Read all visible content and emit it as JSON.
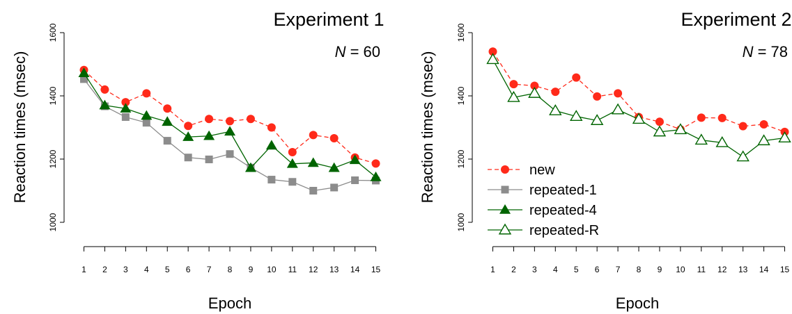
{
  "chart_data": [
    {
      "type": "line",
      "title": "Experiment 1",
      "annotation": {
        "italic": "N",
        "rest": " = 60"
      },
      "xlabel": "Epoch",
      "ylabel": "Reaction times (msec)",
      "ylim": [
        1000,
        1600
      ],
      "yticks": [
        1000,
        1200,
        1400,
        1600
      ],
      "x": [
        1,
        2,
        3,
        4,
        5,
        6,
        7,
        8,
        9,
        10,
        11,
        12,
        13,
        14,
        15
      ],
      "xticks": [
        "1",
        "2",
        "3",
        "4",
        "5",
        "6",
        "7",
        "8",
        "9",
        "10",
        "11",
        "12",
        "13",
        "14",
        "15"
      ],
      "grid": false,
      "series": [
        {
          "name": "new",
          "color": "#ff2a1a",
          "marker": "circle",
          "line": "dashed",
          "values": [
            1482,
            1420,
            1380,
            1408,
            1360,
            1305,
            1327,
            1320,
            1327,
            1300,
            1222,
            1276,
            1266,
            1205,
            1186
          ]
        },
        {
          "name": "repeated-1",
          "color": "#8c8c8c",
          "marker": "square",
          "line": "solid",
          "values": [
            1453,
            1367,
            1333,
            1315,
            1258,
            1205,
            1199,
            1216,
            1173,
            1135,
            1128,
            1100,
            1110,
            1133,
            1132
          ]
        },
        {
          "name": "repeated-4",
          "color": "#006400",
          "marker": "triangle-filled",
          "line": "solid",
          "values": [
            1472,
            1370,
            1360,
            1337,
            1318,
            1270,
            1273,
            1287,
            1172,
            1243,
            1185,
            1188,
            1172,
            1197,
            1143
          ]
        }
      ]
    },
    {
      "type": "line",
      "title": "Experiment 2",
      "annotation": {
        "italic": "N",
        "rest": " = 78"
      },
      "xlabel": "Epoch",
      "ylabel": "Reaction times (msec)",
      "ylim": [
        1000,
        1600
      ],
      "yticks": [
        1000,
        1200,
        1400,
        1600
      ],
      "x": [
        1,
        2,
        3,
        4,
        5,
        6,
        7,
        8,
        9,
        10,
        11,
        12,
        13,
        14,
        15
      ],
      "xticks": [
        "1",
        "2",
        "3",
        "4",
        "5",
        "6",
        "7",
        "8",
        "9",
        "10",
        "11",
        "12",
        "13",
        "14",
        "15"
      ],
      "grid": false,
      "legend": "bottom-left",
      "legend_entries": [
        {
          "name": "new",
          "color": "#ff2a1a",
          "marker": "circle",
          "line": "dashed"
        },
        {
          "name": "repeated-1",
          "color": "#8c8c8c",
          "marker": "square",
          "line": "solid"
        },
        {
          "name": "repeated-4",
          "color": "#006400",
          "marker": "triangle-filled",
          "line": "solid"
        },
        {
          "name": "repeated-R",
          "color": "#006400",
          "marker": "triangle-open",
          "line": "solid"
        }
      ],
      "series": [
        {
          "name": "new",
          "color": "#ff2a1a",
          "marker": "circle",
          "line": "dashed",
          "values": [
            1540,
            1437,
            1432,
            1413,
            1458,
            1398,
            1408,
            1333,
            1318,
            1294,
            1331,
            1330,
            1304,
            1310,
            1286
          ]
        },
        {
          "name": "repeated-R",
          "color": "#006400",
          "marker": "triangle-open",
          "line": "solid",
          "values": [
            1515,
            1395,
            1408,
            1353,
            1335,
            1322,
            1356,
            1326,
            1286,
            1293,
            1260,
            1252,
            1207,
            1258,
            1267
          ]
        }
      ]
    }
  ]
}
